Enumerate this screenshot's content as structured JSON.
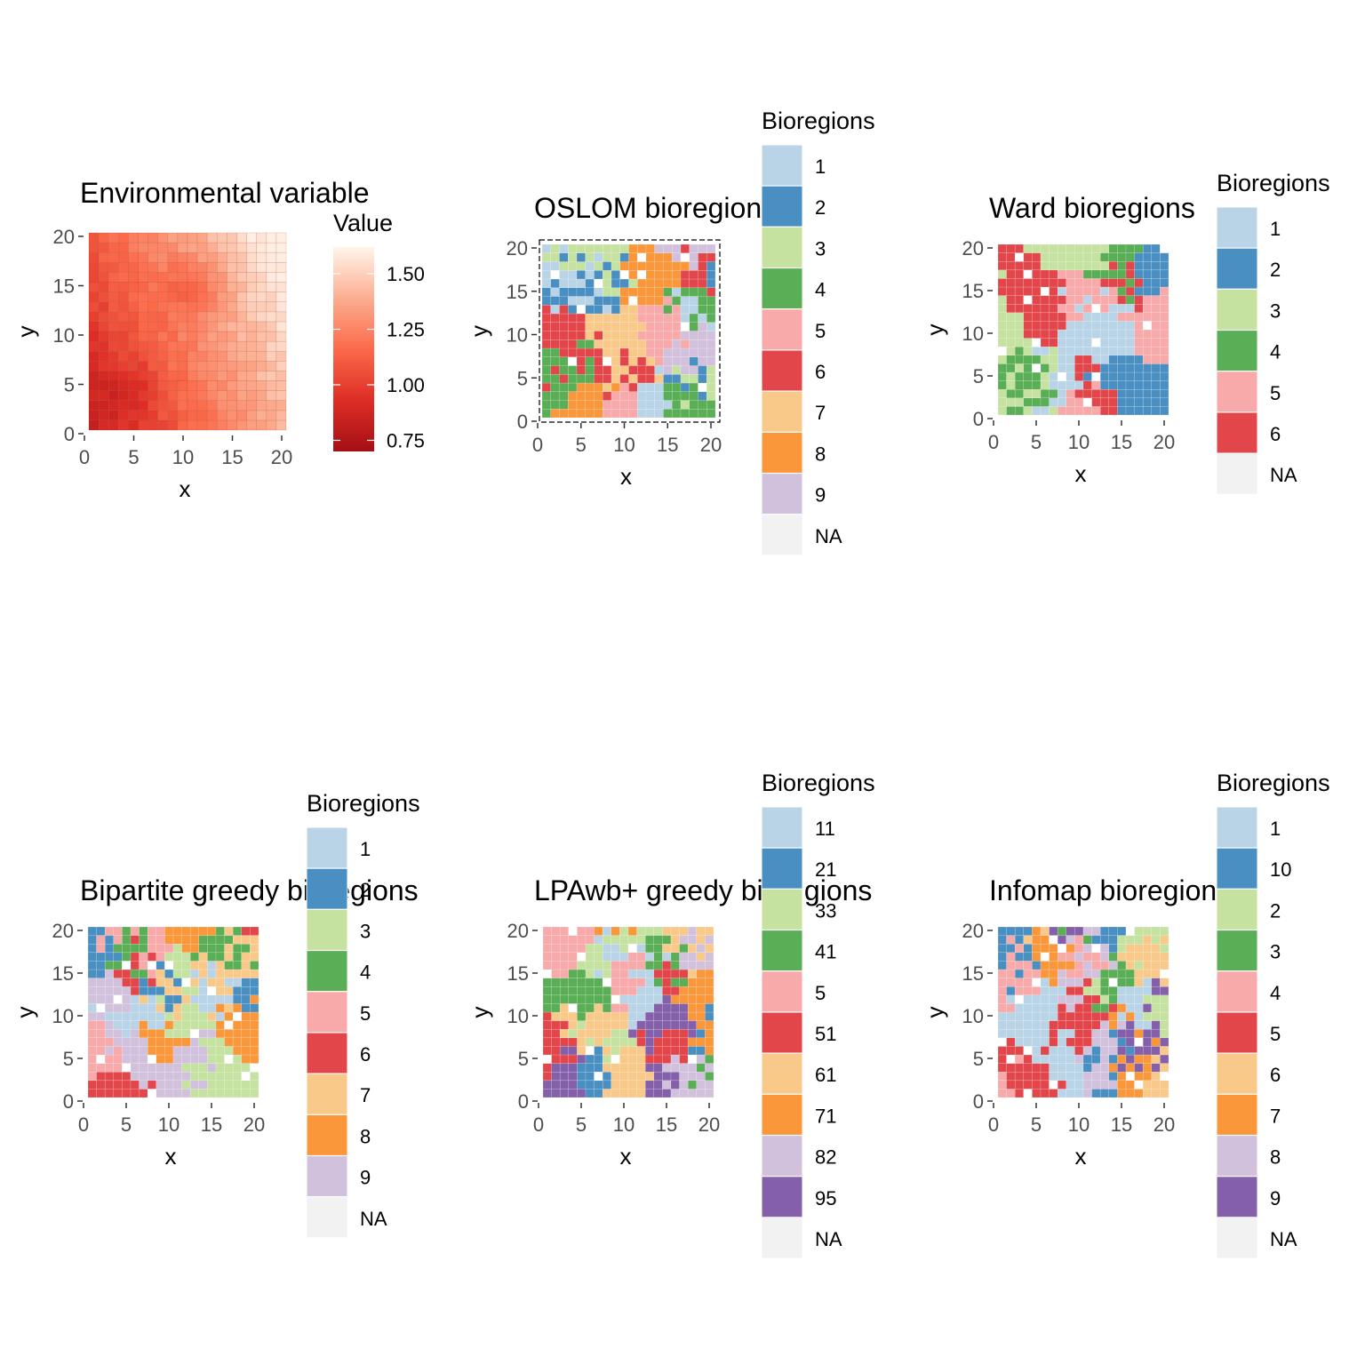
{
  "chart_data": [
    {
      "type": "heatmap",
      "title": "Environmental variable",
      "xlabel": "x",
      "ylabel": "y",
      "xlim": [
        0,
        20
      ],
      "ylim": [
        0,
        20
      ],
      "xticks": [
        "0",
        "5",
        "10",
        "15",
        "20"
      ],
      "yticks": [
        "0",
        "5",
        "10",
        "15",
        "20"
      ],
      "grid": false,
      "legend": {
        "title": "Value",
        "placement": "right",
        "kind": "colorbar",
        "range": [
          0.7,
          1.62
        ],
        "ticks": [
          1.5,
          1.25,
          1.0,
          0.75
        ],
        "tick_labels": [
          "1.50",
          "1.25",
          "1.00",
          "0.75"
        ],
        "low_color": "#a50f15",
        "high_color": "#fff5eb"
      },
      "field": {
        "description": "smooth gradient, low in lower-left (~0.75), high in right (~1.5)",
        "min": 0.75,
        "max": 1.55
      }
    },
    {
      "type": "heatmap",
      "title": "OSLOM bioregions",
      "xlabel": "x",
      "ylabel": "y",
      "xlim": [
        0,
        20
      ],
      "ylim": [
        0,
        20
      ],
      "xticks": [
        "0",
        "5",
        "10",
        "15",
        "20"
      ],
      "yticks": [
        "0",
        "5",
        "10",
        "15",
        "20"
      ],
      "legend": {
        "title": "Bioregions",
        "placement": "right",
        "labels": [
          "1",
          "2",
          "3",
          "4",
          "5",
          "6",
          "7",
          "8",
          "9",
          "NA"
        ],
        "colors": [
          "#b8d4e6",
          "#4a8fc1",
          "#c5e2a1",
          "#5aae55",
          "#f8a9aa",
          "#e2464b",
          "#f9c98a",
          "#f9973a",
          "#d2c1dd",
          "#f2f2f2"
        ]
      }
    },
    {
      "type": "heatmap",
      "title": "Ward bioregions",
      "xlabel": "x",
      "ylabel": "y",
      "xlim": [
        0,
        20
      ],
      "ylim": [
        0,
        20
      ],
      "xticks": [
        "0",
        "5",
        "10",
        "15",
        "20"
      ],
      "yticks": [
        "0",
        "5",
        "10",
        "15",
        "20"
      ],
      "legend": {
        "title": "Bioregions",
        "placement": "right",
        "labels": [
          "1",
          "2",
          "3",
          "4",
          "5",
          "6",
          "NA"
        ],
        "colors": [
          "#b8d4e6",
          "#4a8fc1",
          "#c5e2a1",
          "#5aae55",
          "#f8a9aa",
          "#e2464b",
          "#f2f2f2"
        ]
      }
    },
    {
      "type": "heatmap",
      "title": "Bipartite greedy bioregions",
      "xlabel": "x",
      "ylabel": "y",
      "xlim": [
        0,
        20
      ],
      "ylim": [
        0,
        20
      ],
      "xticks": [
        "0",
        "5",
        "10",
        "15",
        "20"
      ],
      "yticks": [
        "0",
        "5",
        "10",
        "15",
        "20"
      ],
      "legend": {
        "title": "Bioregions",
        "placement": "right",
        "labels": [
          "1",
          "2",
          "3",
          "4",
          "5",
          "6",
          "7",
          "8",
          "9",
          "NA"
        ],
        "colors": [
          "#b8d4e6",
          "#4a8fc1",
          "#c5e2a1",
          "#5aae55",
          "#f8a9aa",
          "#e2464b",
          "#f9c98a",
          "#f9973a",
          "#d2c1dd",
          "#f2f2f2"
        ]
      }
    },
    {
      "type": "heatmap",
      "title": "LPAwb+ greedy bioregions",
      "xlabel": "x",
      "ylabel": "y",
      "xlim": [
        0,
        20
      ],
      "ylim": [
        0,
        20
      ],
      "xticks": [
        "0",
        "5",
        "10",
        "15",
        "20"
      ],
      "yticks": [
        "0",
        "5",
        "10",
        "15",
        "20"
      ],
      "legend": {
        "title": "Bioregions",
        "placement": "right",
        "labels": [
          "11",
          "21",
          "33",
          "41",
          "5",
          "51",
          "61",
          "71",
          "82",
          "95",
          "NA"
        ],
        "colors": [
          "#b8d4e6",
          "#4a8fc1",
          "#c5e2a1",
          "#5aae55",
          "#f8a9aa",
          "#e2464b",
          "#f9c98a",
          "#f9973a",
          "#d2c1dd",
          "#8460ab",
          "#f2f2f2"
        ]
      }
    },
    {
      "type": "heatmap",
      "title": "Infomap bioregions",
      "xlabel": "x",
      "ylabel": "y",
      "xlim": [
        0,
        20
      ],
      "ylim": [
        0,
        20
      ],
      "xticks": [
        "0",
        "5",
        "10",
        "15",
        "20"
      ],
      "yticks": [
        "0",
        "5",
        "10",
        "15",
        "20"
      ],
      "legend": {
        "title": "Bioregions",
        "placement": "right",
        "labels": [
          "1",
          "10",
          "2",
          "3",
          "4",
          "5",
          "6",
          "7",
          "8",
          "9",
          "NA"
        ],
        "colors": [
          "#b8d4e6",
          "#4a8fc1",
          "#c5e2a1",
          "#5aae55",
          "#f8a9aa",
          "#e2464b",
          "#f9c98a",
          "#f9973a",
          "#d2c1dd",
          "#8460ab",
          "#f2f2f2"
        ]
      }
    }
  ]
}
